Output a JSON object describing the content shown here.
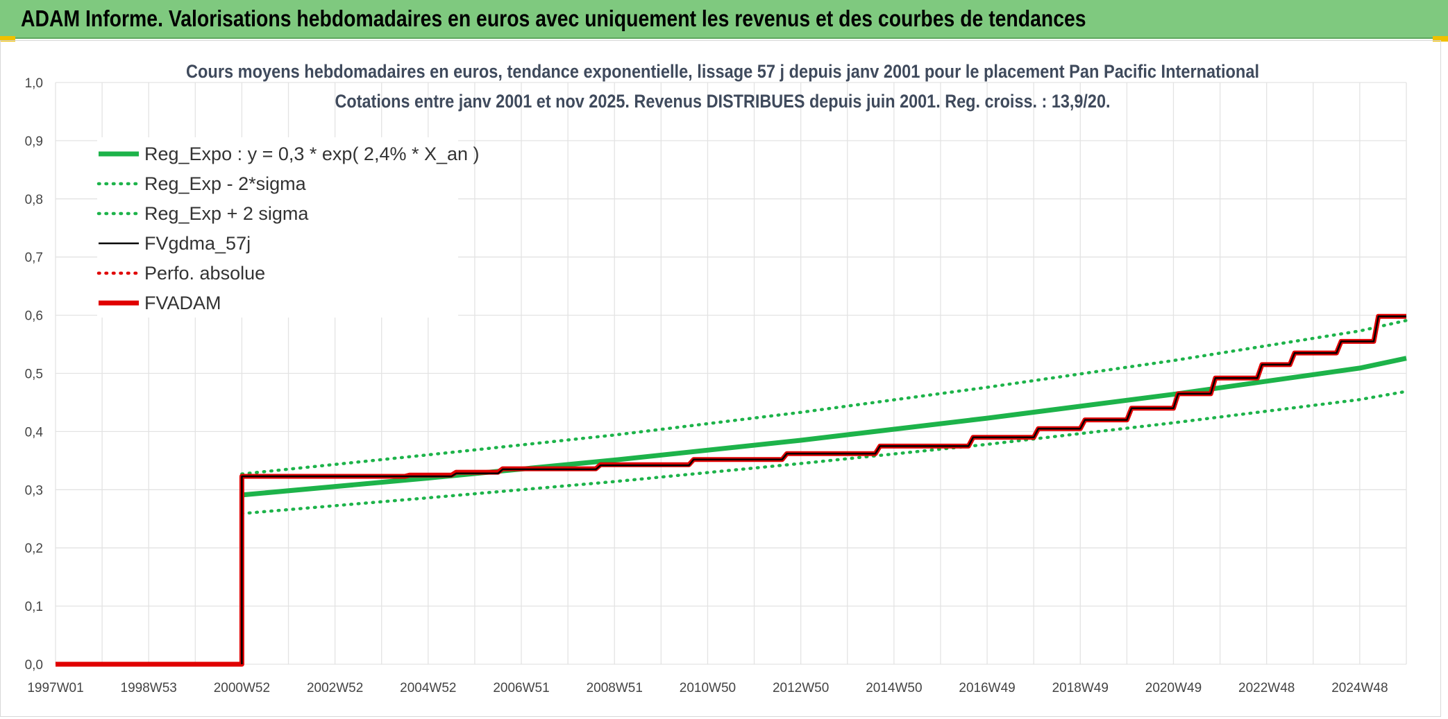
{
  "header": {
    "banner_text": "ADAM Informe. Valorisations hebdomadaires en euros avec uniquement les revenus et des courbes de tendances"
  },
  "colors": {
    "banner": "#7fc97f",
    "trend": "#1db34a",
    "band": "#1db34a",
    "fvgdma": "#000000",
    "perfo": "#e00000",
    "fvadam": "#e00000"
  },
  "chart_data": {
    "type": "line",
    "title": "Cours moyens hebdomadaires en euros, tendance exponentielle, lissage 57 j depuis janv 2001 pour le placement Pan Pacific International",
    "subtitle": "Cotations entre janv 2001 et nov 2025. Revenus DISTRIBUES depuis juin 2001. Reg. croiss. : 13,9/20.",
    "xlabel": "",
    "ylabel": "",
    "ylim": [
      0,
      1.0
    ],
    "xlim": [
      1997.0,
      2026.0
    ],
    "grid": true,
    "legend_position": "top-left",
    "y_ticks": [
      "0,0",
      "0,1",
      "0,2",
      "0,3",
      "0,4",
      "0,5",
      "0,6",
      "0,7",
      "0,8",
      "0,9",
      "1,0"
    ],
    "x_ticks": [
      {
        "label": "1997W01",
        "x": 1997.0
      },
      {
        "label": "1998W53",
        "x": 1999.0
      },
      {
        "label": "2000W52",
        "x": 2001.0
      },
      {
        "label": "2002W52",
        "x": 2003.0
      },
      {
        "label": "2004W52",
        "x": 2005.0
      },
      {
        "label": "2006W51",
        "x": 2007.0
      },
      {
        "label": "2008W51",
        "x": 2009.0
      },
      {
        "label": "2010W50",
        "x": 2011.0
      },
      {
        "label": "2012W50",
        "x": 2013.0
      },
      {
        "label": "2014W50",
        "x": 2015.0
      },
      {
        "label": "2016W49",
        "x": 2017.0
      },
      {
        "label": "2018W49",
        "x": 2019.0
      },
      {
        "label": "2020W49",
        "x": 2021.0
      },
      {
        "label": "2022W48",
        "x": 2023.0
      },
      {
        "label": "2024W48",
        "x": 2025.0
      }
    ],
    "series": [
      {
        "name": "Reg_Expo : y = 0,3 * exp( 2,4% *  X_an )",
        "style": "solid-thick",
        "color": "#1db34a",
        "x": [
          2001.0,
          2005.0,
          2009.0,
          2013.0,
          2017.0,
          2021.0,
          2025.0,
          2026.0
        ],
        "y": [
          0.291,
          0.32,
          0.351,
          0.385,
          0.423,
          0.464,
          0.509,
          0.526
        ]
      },
      {
        "name": "Reg_Exp - 2*sigma",
        "style": "dotted",
        "color": "#1db34a",
        "x": [
          2001.0,
          2005.0,
          2009.0,
          2013.0,
          2017.0,
          2021.0,
          2025.0,
          2026.0
        ],
        "y": [
          0.259,
          0.286,
          0.314,
          0.345,
          0.378,
          0.415,
          0.455,
          0.469
        ]
      },
      {
        "name": "Reg_Exp + 2 sigma",
        "style": "dotted",
        "color": "#1db34a",
        "x": [
          2001.0,
          2005.0,
          2009.0,
          2013.0,
          2017.0,
          2021.0,
          2025.0,
          2026.0
        ],
        "y": [
          0.327,
          0.36,
          0.394,
          0.433,
          0.476,
          0.522,
          0.573,
          0.591
        ]
      },
      {
        "name": "FVgdma_57j",
        "style": "solid-thin",
        "color": "#000000",
        "x": [
          2001.0,
          2001.0,
          2005.5,
          2005.6,
          2006.5,
          2006.6,
          2008.6,
          2008.7,
          2010.6,
          2010.7,
          2012.6,
          2012.7,
          2014.6,
          2014.7,
          2016.6,
          2016.7,
          2018.0,
          2018.1,
          2019.0,
          2019.1,
          2020.0,
          2020.1,
          2021.0,
          2021.1,
          2021.8,
          2021.9,
          2022.8,
          2022.9,
          2023.5,
          2023.6,
          2024.5,
          2024.6,
          2025.3,
          2025.4,
          2026.0
        ],
        "y": [
          0.0,
          0.323,
          0.323,
          0.328,
          0.328,
          0.335,
          0.335,
          0.342,
          0.342,
          0.352,
          0.352,
          0.362,
          0.362,
          0.375,
          0.375,
          0.39,
          0.39,
          0.405,
          0.405,
          0.42,
          0.42,
          0.44,
          0.44,
          0.465,
          0.465,
          0.492,
          0.492,
          0.515,
          0.515,
          0.535,
          0.535,
          0.555,
          0.555,
          0.598,
          0.598
        ]
      },
      {
        "name": "Perfo. absolue",
        "style": "dotted",
        "color": "#e00000",
        "x": [],
        "y": []
      },
      {
        "name": "FVADAM",
        "style": "solid-thick",
        "color": "#e00000",
        "x": [
          1997.0,
          2001.0,
          2001.0,
          2004.5,
          2004.6,
          2005.5,
          2005.6,
          2006.5,
          2006.6,
          2008.6,
          2008.7,
          2010.6,
          2010.7,
          2012.6,
          2012.7,
          2014.6,
          2014.7,
          2016.6,
          2016.7,
          2018.0,
          2018.1,
          2019.0,
          2019.1,
          2020.0,
          2020.1,
          2021.0,
          2021.1,
          2021.8,
          2021.9,
          2022.8,
          2022.9,
          2023.5,
          2023.6,
          2024.5,
          2024.6,
          2025.3,
          2025.4,
          2026.0
        ],
        "y": [
          0.0,
          0.0,
          0.323,
          0.323,
          0.325,
          0.325,
          0.33,
          0.33,
          0.336,
          0.336,
          0.343,
          0.343,
          0.352,
          0.352,
          0.362,
          0.362,
          0.375,
          0.375,
          0.39,
          0.39,
          0.405,
          0.405,
          0.42,
          0.42,
          0.44,
          0.44,
          0.465,
          0.465,
          0.492,
          0.492,
          0.515,
          0.515,
          0.535,
          0.535,
          0.555,
          0.555,
          0.598,
          0.598
        ]
      }
    ]
  }
}
